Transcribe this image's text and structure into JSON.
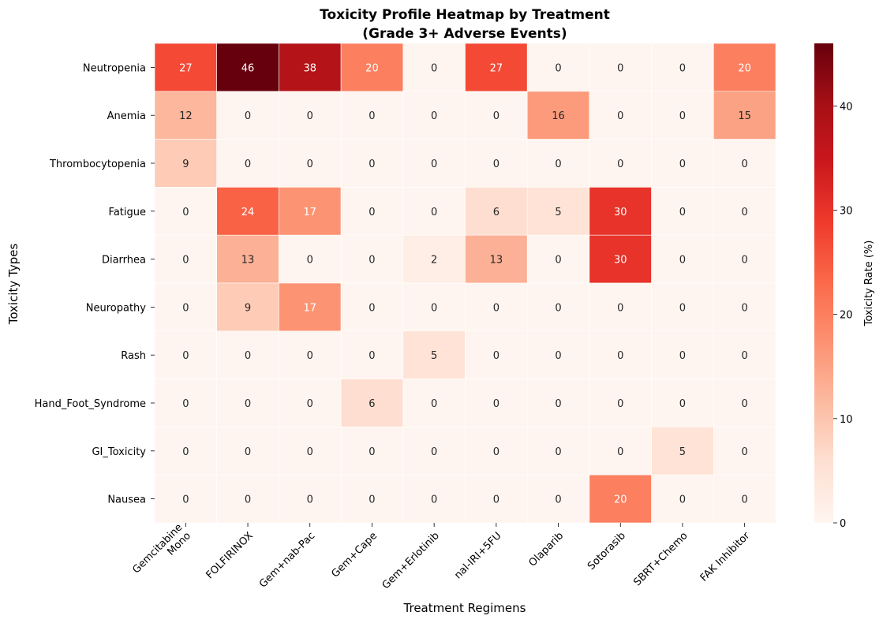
{
  "chart_data": {
    "type": "heatmap",
    "title_line1": "Toxicity Profile Heatmap by Treatment",
    "title_line2": "(Grade 3+ Adverse Events)",
    "xlabel": "Treatment Regimens",
    "ylabel": "Toxicity Types",
    "colorbar_label": "Toxicity Rate (%)",
    "colorbar_ticks": [
      "0",
      "10",
      "20",
      "30",
      "40"
    ],
    "vmin": 0,
    "vmax": 46,
    "x_categories": [
      [
        "Gemcitabine",
        "Mono"
      ],
      [
        "FOLFIRINOX"
      ],
      [
        "Gem+nab-Pac"
      ],
      [
        "Gem+Cape"
      ],
      [
        "Gem+Erlotinib"
      ],
      [
        "nal-IRI+5FU"
      ],
      [
        "Olaparib"
      ],
      [
        "Sotorasib"
      ],
      [
        "SBRT+Chemo"
      ],
      [
        "FAK Inhibitor"
      ]
    ],
    "y_categories": [
      "Neutropenia",
      "Anemia",
      "Thrombocytopenia",
      "Fatigue",
      "Diarrhea",
      "Neuropathy",
      "Rash",
      "Hand_Foot_Syndrome",
      "GI_Toxicity",
      "Nausea"
    ],
    "values": [
      [
        27,
        46,
        38,
        20,
        0,
        27,
        0,
        0,
        0,
        20
      ],
      [
        12,
        0,
        0,
        0,
        0,
        0,
        16,
        0,
        0,
        15
      ],
      [
        9,
        0,
        0,
        0,
        0,
        0,
        0,
        0,
        0,
        0
      ],
      [
        0,
        24,
        17,
        0,
        0,
        6,
        5,
        30,
        0,
        0
      ],
      [
        0,
        13,
        0,
        0,
        2,
        13,
        0,
        30,
        0,
        0
      ],
      [
        0,
        9,
        17,
        0,
        0,
        0,
        0,
        0,
        0,
        0
      ],
      [
        0,
        0,
        0,
        0,
        5,
        0,
        0,
        0,
        0,
        0
      ],
      [
        0,
        0,
        0,
        6,
        0,
        0,
        0,
        0,
        0,
        0
      ],
      [
        0,
        0,
        0,
        0,
        0,
        0,
        0,
        0,
        5,
        0
      ],
      [
        0,
        0,
        0,
        0,
        0,
        0,
        0,
        20,
        0,
        0
      ]
    ],
    "colormap": [
      "#fff5f0",
      "#fee0d2",
      "#fcbba1",
      "#fc9272",
      "#fb6a4a",
      "#ef3b2c",
      "#cb181d",
      "#a50f15",
      "#67000d"
    ]
  }
}
